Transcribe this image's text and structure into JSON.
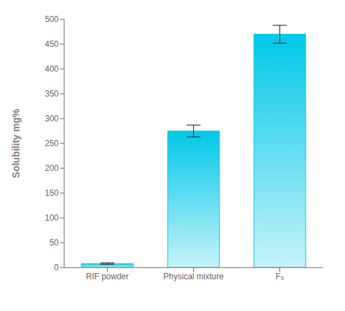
{
  "chart_data": {
    "type": "bar",
    "categories": [
      "RIF powder",
      "Physical mixture",
      "F₅"
    ],
    "values": [
      8,
      275,
      470
    ],
    "errors": [
      1.5,
      12,
      18
    ],
    "color": "#00c8e8",
    "ylabel": "Solubility mg%",
    "ylim": [
      0,
      500
    ],
    "yticks": [
      0,
      50,
      100,
      150,
      200,
      250,
      300,
      350,
      400,
      450,
      500
    ],
    "grid": false
  }
}
